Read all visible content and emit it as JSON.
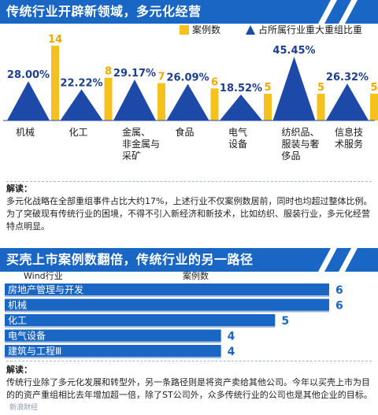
{
  "top": {
    "title": "传统行业开辟新领域，多元化经营",
    "legend": [
      {
        "label": "案例数",
        "color": "#f5c11c",
        "shape": "square"
      },
      {
        "label": "占所属行业重大重组比重",
        "color": "#1d4aa8",
        "shape": "triangle"
      }
    ],
    "note": {
      "label": "解读：",
      "text": "多元化战略在全部重组事件占比大约17%，上述行业不仅案例数居前，同时也均超过整体比例。为了突破现有传统行业的困境，不得不引入新经济和新技术，比如纺织、服装行业，多元化经营特点明显。"
    }
  },
  "bottom": {
    "title": "买壳上市案例数翻倍，传统行业的另一路径",
    "col_header_left": "Wind行业",
    "col_header_right": "案例数",
    "note": {
      "label": "解读：",
      "text": "传统行业除了多元化发展和转型外，另一条路径则是将资产卖给其他公司。今年以买壳上市为目的的资产重组相比去年增加超一倍，除了ST公司外，众多传统行业的公司也是其他企业的目标。"
    },
    "watermark": "新浪财经"
  },
  "chart_data": [
    {
      "type": "bar",
      "title": "传统行业开辟新领域，多元化经营",
      "categories": [
        "机械",
        "化工",
        "金属、非金属与采矿",
        "食品",
        "电气设备",
        "纺织品、服装与奢侈品",
        "信息技术服务"
      ],
      "category_lines": [
        [
          "机械"
        ],
        [
          "化工"
        ],
        [
          "金属、",
          "非金属与",
          "采矿"
        ],
        [
          "食品"
        ],
        [
          "电气",
          "设备"
        ],
        [
          "纺织品、",
          "服装与奢",
          "侈品"
        ],
        [
          "信息技",
          "术服务"
        ]
      ],
      "series": [
        {
          "name": "占所属行业重大重组比重",
          "values": [
            28.0,
            22.22,
            29.17,
            26.09,
            18.52,
            45.45,
            26.32
          ],
          "labels": [
            "28.00%",
            "22.22%",
            "29.17%",
            "26.09%",
            "18.52%",
            "45.45%",
            "26.32%"
          ]
        },
        {
          "name": "案例数",
          "values": [
            14,
            8,
            7,
            6,
            5,
            5,
            5
          ],
          "labels": [
            "14",
            "8",
            "7",
            "6",
            "5",
            "5",
            "5"
          ]
        }
      ],
      "legend_position": "top-right",
      "grid": false
    },
    {
      "type": "bar",
      "orientation": "horizontal",
      "title": "买壳上市案例数翻倍，传统行业的另一路径",
      "categories": [
        "房地产管理与开发",
        "机械",
        "化工",
        "电气设备",
        "建筑与工程Ⅲ"
      ],
      "values": [
        6,
        6,
        5,
        4,
        4
      ],
      "labels": [
        "6",
        "6",
        "5",
        "4",
        "4"
      ],
      "xlabel": "案例数",
      "ylabel": "Wind行业",
      "grid": false
    }
  ]
}
